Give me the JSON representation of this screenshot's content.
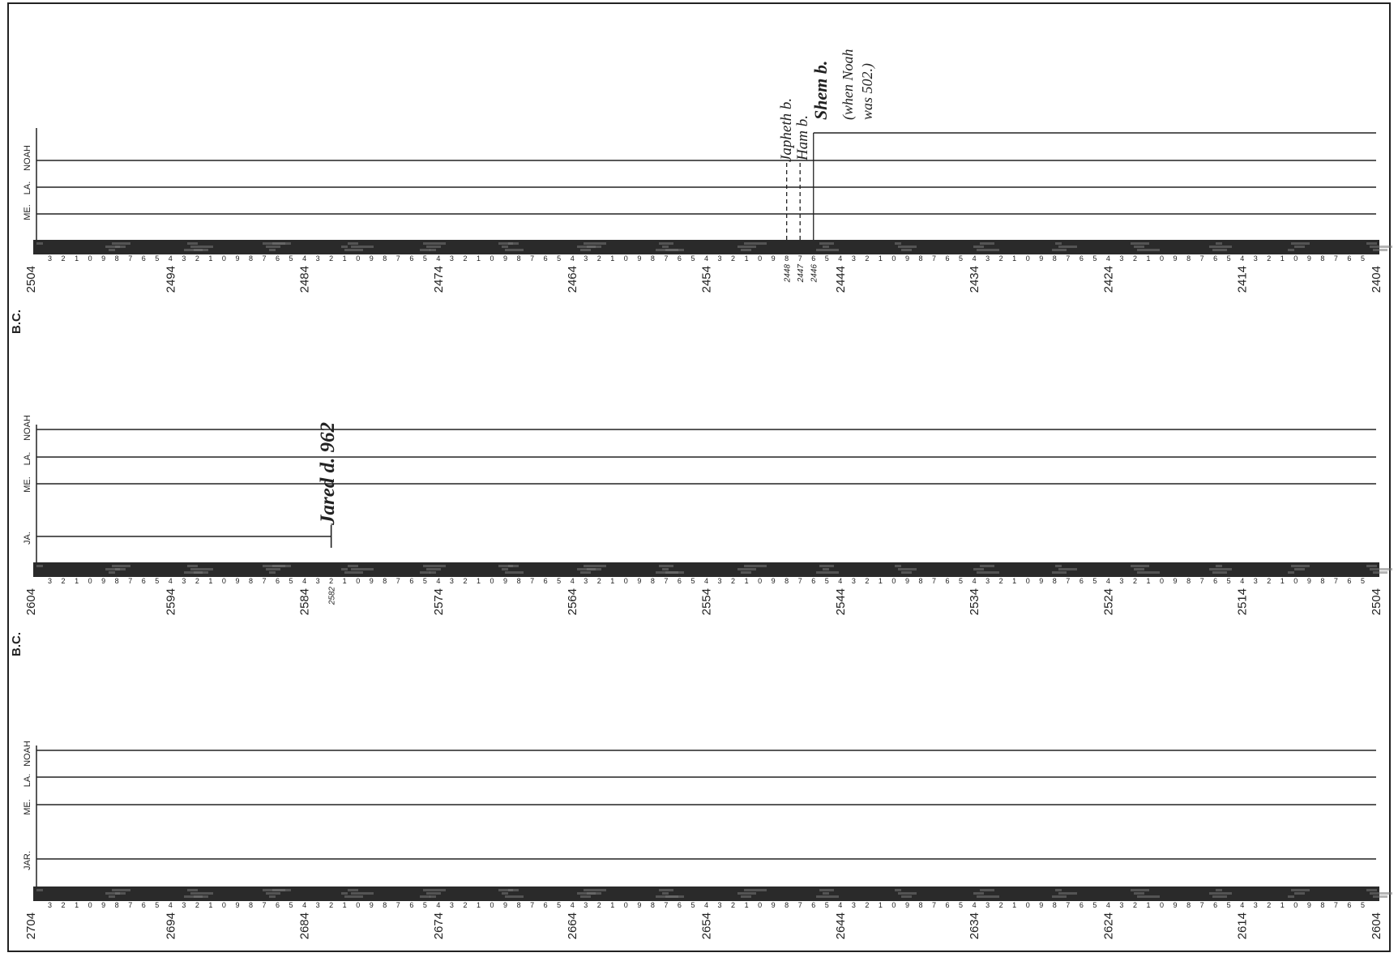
{
  "panels": [
    {
      "bc_label": "B.C.",
      "start_year": "2504",
      "end_year": "2404",
      "decade_labels": [
        "2494",
        "2484",
        "2474",
        "2464",
        "2454",
        "2444",
        "2434",
        "2424",
        "2414"
      ],
      "special_labels": [
        "2448",
        "2447",
        "2446"
      ],
      "lane_labels": [
        "ME.",
        "LA.",
        "NOAH"
      ],
      "lanes": [
        {
          "name": "ME.",
          "from": 2504,
          "to": 2404
        },
        {
          "name": "LA.",
          "from": 2504,
          "to": 2404
        },
        {
          "name": "NOAH",
          "from": 2504,
          "to": 2404
        },
        {
          "name": "SHEM",
          "from": 2446,
          "to": 2404
        }
      ],
      "events": [
        {
          "year": 2448,
          "text": "Japheth b."
        },
        {
          "year": 2447,
          "text": "Ham b."
        },
        {
          "year": 2446,
          "text": "Shem b. (when Noah was 502.)"
        }
      ]
    },
    {
      "bc_label": "B.C.",
      "start_year": "2604",
      "end_year": "2504",
      "decade_labels": [
        "2594",
        "2584",
        "2574",
        "2564",
        "2554",
        "2544",
        "2534",
        "2524",
        "2514"
      ],
      "special_labels": [
        "2582"
      ],
      "lane_labels": [
        "JA.",
        "ME.",
        "LA.",
        "NOAH"
      ],
      "lanes": [
        {
          "name": "JA.",
          "from": 2604,
          "to": 2582
        },
        {
          "name": "ME.",
          "from": 2604,
          "to": 2504
        },
        {
          "name": "LA.",
          "from": 2604,
          "to": 2504
        },
        {
          "name": "NOAH",
          "from": 2604,
          "to": 2504
        }
      ],
      "events": [
        {
          "year": 2582,
          "text": "Jared d. 962"
        }
      ]
    },
    {
      "bc_label": "B.C.",
      "start_year": "2704",
      "end_year": "2604",
      "decade_labels": [
        "2694",
        "2684",
        "2674",
        "2664",
        "2654",
        "2644",
        "2634",
        "2624",
        "2614"
      ],
      "special_labels": [],
      "lane_labels": [
        "JAR.",
        "ME.",
        "LA.",
        "NOAH"
      ],
      "lanes": [
        {
          "name": "JAR.",
          "from": 2704,
          "to": 2604
        },
        {
          "name": "ME.",
          "from": 2704,
          "to": 2604
        },
        {
          "name": "LA.",
          "from": 2704,
          "to": 2604
        },
        {
          "name": "NOAH",
          "from": 2704,
          "to": 2604
        }
      ],
      "events": []
    }
  ],
  "colors": {
    "ink": "#222222",
    "band": "#2a2a2a",
    "paper": "#ffffff"
  }
}
